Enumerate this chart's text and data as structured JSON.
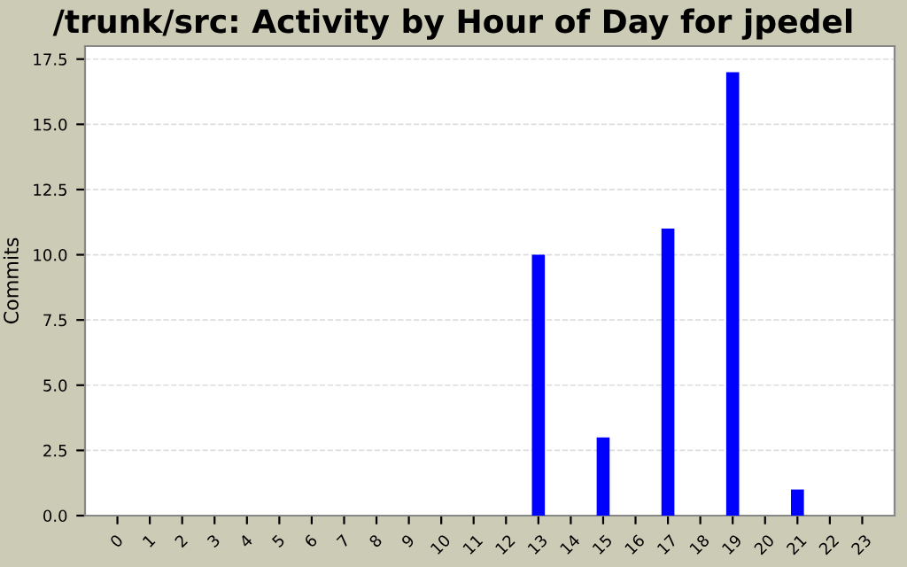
{
  "chart_data": {
    "type": "bar",
    "title": "/trunk/src: Activity by Hour of Day for jpedel",
    "ylabel": "Commits",
    "categories": [
      "0",
      "1",
      "2",
      "3",
      "4",
      "5",
      "6",
      "7",
      "8",
      "9",
      "10",
      "11",
      "12",
      "13",
      "14",
      "15",
      "16",
      "17",
      "18",
      "19",
      "20",
      "21",
      "22",
      "23"
    ],
    "values": [
      0,
      0,
      0,
      0,
      0,
      0,
      0,
      0,
      0,
      0,
      0,
      0,
      0,
      10,
      0,
      3,
      0,
      11,
      0,
      17,
      0,
      1,
      0,
      0
    ],
    "color": "#0000ff",
    "ylim": [
      0,
      18
    ],
    "yticks": [
      {
        "value": 0,
        "label": "0.0"
      },
      {
        "value": 2.5,
        "label": "2.5"
      },
      {
        "value": 5,
        "label": "5.0"
      },
      {
        "value": 7.5,
        "label": "7.5"
      },
      {
        "value": 10,
        "label": "10.0"
      },
      {
        "value": 12.5,
        "label": "12.5"
      },
      {
        "value": 15,
        "label": "15.0"
      },
      {
        "value": 17.5,
        "label": "17.5"
      }
    ],
    "grid": "y",
    "legend": false
  }
}
